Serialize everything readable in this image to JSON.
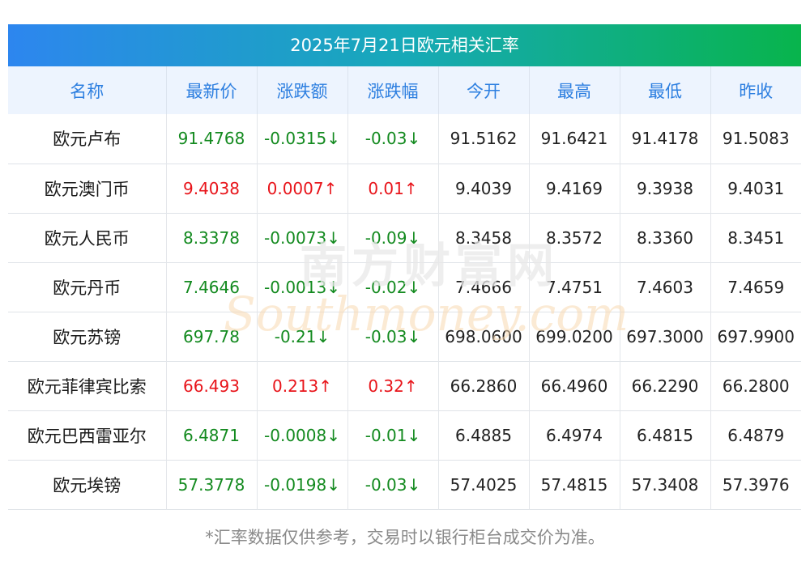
{
  "title": "2025年7月21日欧元相关汇率",
  "columns": [
    "名称",
    "最新价",
    "涨跌额",
    "涨跌幅",
    "今开",
    "最高",
    "最低",
    "昨收"
  ],
  "rows": [
    {
      "name": "欧元卢布",
      "latest": "91.4768",
      "change": "-0.0315↓",
      "change_pct": "-0.03↓",
      "open": "91.5162",
      "high": "91.6421",
      "low": "91.4178",
      "prev_close": "91.5083",
      "trend": "down"
    },
    {
      "name": "欧元澳门币",
      "latest": "9.4038",
      "change": "0.0007↑",
      "change_pct": "0.01↑",
      "open": "9.4039",
      "high": "9.4169",
      "low": "9.3938",
      "prev_close": "9.4031",
      "trend": "up"
    },
    {
      "name": "欧元人民币",
      "latest": "8.3378",
      "change": "-0.0073↓",
      "change_pct": "-0.09↓",
      "open": "8.3458",
      "high": "8.3572",
      "low": "8.3360",
      "prev_close": "8.3451",
      "trend": "down"
    },
    {
      "name": "欧元丹币",
      "latest": "7.4646",
      "change": "-0.0013↓",
      "change_pct": "-0.02↓",
      "open": "7.4666",
      "high": "7.4751",
      "low": "7.4603",
      "prev_close": "7.4659",
      "trend": "down"
    },
    {
      "name": "欧元苏镑",
      "latest": "697.78",
      "change": "-0.21↓",
      "change_pct": "-0.03↓",
      "open": "698.0600",
      "high": "699.0200",
      "low": "697.3000",
      "prev_close": "697.9900",
      "trend": "down"
    },
    {
      "name": "欧元菲律宾比索",
      "latest": "66.493",
      "change": "0.213↑",
      "change_pct": "0.32↑",
      "open": "66.2860",
      "high": "66.4960",
      "low": "66.2290",
      "prev_close": "66.2800",
      "trend": "up"
    },
    {
      "name": "欧元巴西雷亚尔",
      "latest": "6.4871",
      "change": "-0.0008↓",
      "change_pct": "-0.01↓",
      "open": "6.4885",
      "high": "6.4974",
      "low": "6.4815",
      "prev_close": "6.4879",
      "trend": "down"
    },
    {
      "name": "欧元埃镑",
      "latest": "57.3778",
      "change": "-0.0198↓",
      "change_pct": "-0.03↓",
      "open": "57.4025",
      "high": "57.4815",
      "low": "57.3408",
      "prev_close": "57.3976",
      "trend": "down"
    }
  ],
  "footnote": "*汇率数据仅供参考，交易时以银行柜台成交价为准。",
  "watermark": {
    "cn": "南方财富网",
    "en": "Southmoney.com"
  },
  "colors": {
    "up": "#e8141a",
    "down": "#138a1f",
    "header_text": "#2d7fe0",
    "title_gradient_start": "#2d86ef",
    "title_gradient_end": "#08b44c"
  }
}
